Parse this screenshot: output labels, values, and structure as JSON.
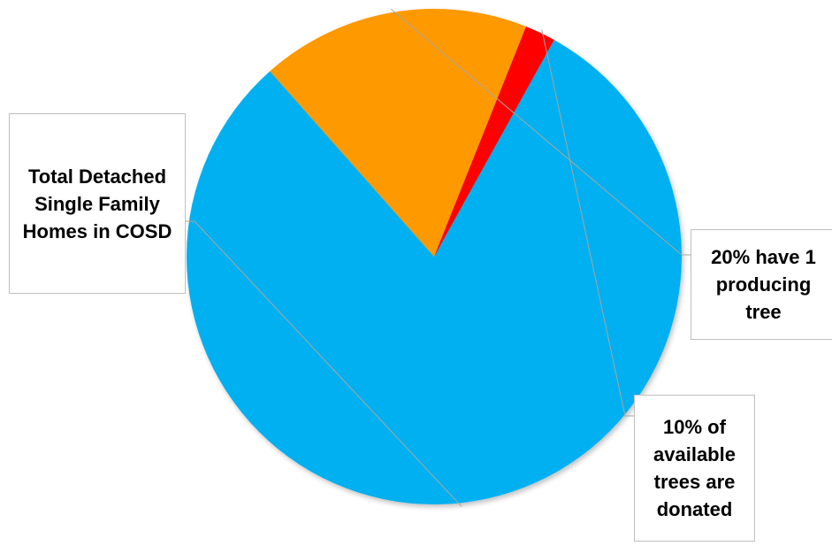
{
  "chart_data": {
    "type": "pie",
    "title": "",
    "start_angle_deg": 61,
    "colors": {
      "background": "#ffffff",
      "leader": "#a6a6a6",
      "callout_border": "#bfbfbf"
    },
    "slices": [
      {
        "label": "Total Detached Single Family Homes in COSD",
        "value": 80.4,
        "color": "#00b0f0"
      },
      {
        "label": "20% have 1 producing tree",
        "value": 17.6,
        "color": "#ff9900"
      },
      {
        "label": "10% of available trees are donated",
        "value": 2.0,
        "color": "#ff0000"
      }
    ]
  }
}
